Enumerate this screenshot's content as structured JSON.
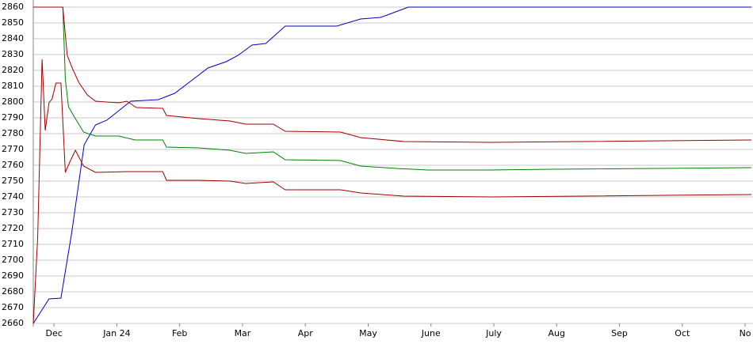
{
  "chart_data": {
    "type": "line",
    "ylim": [
      2660,
      2860
    ],
    "yticks": [
      2660,
      2670,
      2680,
      2690,
      2700,
      2710,
      2720,
      2730,
      2740,
      2750,
      2760,
      2770,
      2780,
      2790,
      2800,
      2810,
      2820,
      2830,
      2840,
      2850,
      2860
    ],
    "xlim": [
      -0.33,
      11.1
    ],
    "xticks": [
      {
        "value": 0,
        "label": "Dec"
      },
      {
        "value": 1,
        "label": "Jan 24"
      },
      {
        "value": 2,
        "label": "Feb"
      },
      {
        "value": 3,
        "label": "Mar"
      },
      {
        "value": 4,
        "label": "Apr"
      },
      {
        "value": 5,
        "label": "May"
      },
      {
        "value": 6,
        "label": "June"
      },
      {
        "value": 7,
        "label": "July"
      },
      {
        "value": 8,
        "label": "Aug"
      },
      {
        "value": 9,
        "label": "Sep"
      },
      {
        "value": 10,
        "label": "Oct"
      },
      {
        "value": 11,
        "label": "No"
      }
    ],
    "grid": true,
    "series": [
      {
        "color": "#0000c0",
        "x": [
          -0.33,
          -0.08,
          0.11,
          0.28,
          0.48,
          0.66,
          0.84,
          1.03,
          1.22,
          1.66,
          1.92,
          2.17,
          2.45,
          2.74,
          2.93,
          3.15,
          3.37,
          3.68,
          4.5,
          4.88,
          5.2,
          5.64,
          11.1
        ],
        "values": [
          2660,
          2675.5,
          2676,
          2717,
          2773,
          2785.5,
          2788.5,
          2794.5,
          2800.5,
          2801.5,
          2805.5,
          2813,
          2821.5,
          2825.5,
          2829.5,
          2836,
          2837,
          2848,
          2848,
          2852.5,
          2853.5,
          2860,
          2860
        ]
      },
      {
        "color": "#008000",
        "x": [
          -0.33,
          0.14,
          0.18,
          0.23,
          0.34,
          0.47,
          0.66,
          1.03,
          1.29,
          1.73,
          1.79,
          2.3,
          2.8,
          3.05,
          3.49,
          3.68,
          4.56,
          4.88,
          5.45,
          5.95,
          6.96,
          7.97,
          11.1
        ],
        "values": [
          2860,
          2860,
          2814.5,
          2797,
          2789.5,
          2781,
          2778.5,
          2778.5,
          2776,
          2776,
          2771.5,
          2771,
          2769.5,
          2767.5,
          2768.5,
          2763.5,
          2763,
          2759.5,
          2758,
          2757,
          2757,
          2757.5,
          2758.5
        ]
      },
      {
        "color": "#a00000",
        "x": [
          -0.33,
          0.14,
          0.21,
          0.3,
          0.4,
          0.53,
          0.66,
          1.03,
          1.16,
          1.31,
          1.73,
          1.79,
          2.3,
          2.8,
          3.05,
          3.49,
          3.68,
          4.56,
          4.88,
          5.57,
          6.96,
          11.1
        ],
        "values": [
          2860,
          2860,
          2829.5,
          2820.5,
          2812,
          2804.5,
          2800.5,
          2799.5,
          2800.5,
          2796.5,
          2796,
          2791.5,
          2789.5,
          2788,
          2786,
          2786,
          2781.5,
          2781,
          2777.5,
          2775,
          2774.5,
          2776
        ]
      },
      {
        "color": "#a00000",
        "x": [
          -0.33,
          -0.26,
          -0.19,
          -0.14,
          -0.08,
          -0.03,
          0.03,
          0.11,
          0.18,
          0.25,
          0.34,
          0.47,
          0.66,
          1.16,
          1.73,
          1.79,
          2.3,
          2.8,
          3.05,
          3.49,
          3.68,
          4.56,
          4.88,
          5.57,
          6.96,
          11.1
        ],
        "values": [
          2660,
          2714.5,
          2827,
          2782,
          2799.5,
          2802,
          2812,
          2812,
          2755.5,
          2762,
          2769.5,
          2759.5,
          2755.5,
          2756,
          2756,
          2750.5,
          2750.5,
          2750,
          2748.5,
          2749.5,
          2744.5,
          2744.5,
          2742.5,
          2740.5,
          2740,
          2741.5
        ]
      }
    ]
  }
}
